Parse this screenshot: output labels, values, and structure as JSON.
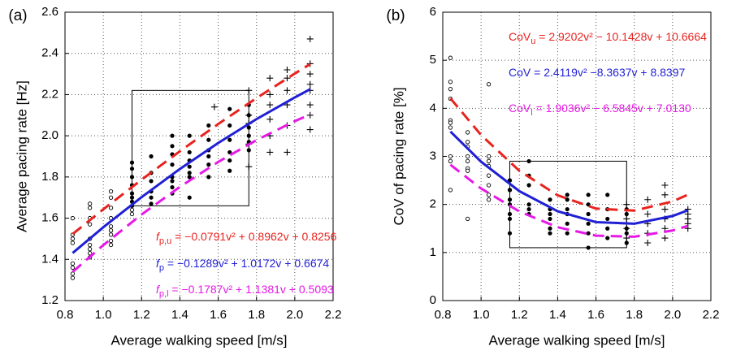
{
  "chart_data": [
    {
      "type": "scatter",
      "panel_label": "(a)",
      "xlabel": "Average walking speed [m/s]",
      "ylabel": "Average pacing rate [Hz]",
      "xlim": [
        0.8,
        2.2
      ],
      "ylim": [
        1.2,
        2.6
      ],
      "xticks": [
        0.8,
        {
          "value": 1,
          "label": "1.0"
        },
        1.2,
        1.4,
        1.6,
        1.8,
        {
          "value": 2,
          "label": "2.0"
        },
        2.2
      ],
      "yticks": [
        1.2,
        1.4,
        1.6,
        1.8,
        {
          "value": 2,
          "label": "2.0"
        },
        2.2,
        2.4,
        2.6
      ],
      "grid": true,
      "box": {
        "x": [
          1.15,
          1.76
        ],
        "y": [
          1.66,
          2.22
        ]
      },
      "series": [
        {
          "type": "scatter",
          "marker": "open",
          "color": "#000000",
          "x": [
            0.84,
            0.84,
            0.84,
            0.84,
            0.84,
            0.84,
            0.84,
            0.84,
            0.93,
            0.93,
            0.93,
            0.93,
            0.93,
            0.93,
            0.93,
            0.93,
            0.93,
            1.04,
            1.04,
            1.04,
            1.04,
            1.04,
            1.04,
            1.04,
            1.04,
            1.04,
            1.15,
            1.15
          ],
          "values": [
            1.6,
            1.52,
            1.5,
            1.48,
            1.38,
            1.36,
            1.33,
            1.31,
            1.67,
            1.65,
            1.6,
            1.57,
            1.5,
            1.47,
            1.45,
            1.43,
            1.41,
            1.73,
            1.7,
            1.65,
            1.6,
            1.56,
            1.54,
            1.52,
            1.49,
            1.47,
            1.64,
            1.62
          ]
        },
        {
          "type": "scatter",
          "marker": "dot",
          "color": "#000000",
          "x": [
            1.15,
            1.15,
            1.15,
            1.15,
            1.15,
            1.15,
            1.15,
            1.15,
            1.25,
            1.25,
            1.25,
            1.25,
            1.25,
            1.25,
            1.36,
            1.36,
            1.36,
            1.36,
            1.36,
            1.36,
            1.36,
            1.36,
            1.45,
            1.45,
            1.45,
            1.45,
            1.45,
            1.45,
            1.45,
            1.55,
            1.55,
            1.55,
            1.55,
            1.55,
            1.55,
            1.66,
            1.66,
            1.66,
            1.66,
            1.66,
            1.66,
            1.76,
            1.76,
            1.76,
            1.76,
            1.76,
            1.76
          ],
          "values": [
            1.87,
            1.84,
            1.8,
            1.76,
            1.72,
            1.7,
            1.68,
            1.66,
            1.9,
            1.82,
            1.78,
            1.73,
            1.7,
            1.67,
            2.0,
            1.95,
            1.91,
            1.86,
            1.8,
            1.78,
            1.75,
            1.72,
            2.0,
            1.92,
            1.88,
            1.85,
            1.82,
            1.8,
            1.7,
            2.05,
            1.98,
            1.93,
            1.9,
            1.86,
            1.8,
            2.13,
            2.05,
            1.98,
            1.92,
            1.88,
            1.83,
            2.15,
            2.1,
            2.04,
            2.0,
            1.97,
            1.93
          ]
        },
        {
          "type": "scatter",
          "marker": "plus",
          "color": "#000000",
          "x": [
            1.58,
            1.76,
            1.76,
            1.76,
            1.76,
            1.76,
            1.87,
            1.87,
            1.87,
            1.87,
            1.87,
            1.87,
            1.96,
            1.96,
            1.96,
            1.96,
            1.96,
            1.96,
            2.08,
            2.08,
            2.08,
            2.08,
            2.08,
            2.08,
            2.08,
            2.08
          ],
          "values": [
            2.14,
            2.22,
            2.1,
            2.06,
            1.96,
            1.85,
            2.28,
            2.2,
            2.15,
            2.08,
            2.0,
            1.92,
            2.32,
            2.28,
            2.22,
            2.15,
            2.05,
            1.92,
            2.47,
            2.35,
            2.3,
            2.25,
            2.22,
            2.15,
            2.1,
            2.03
          ]
        },
        {
          "type": "line",
          "style": "dashed",
          "color": "#e8231f",
          "x": [
            0.84,
            1.0,
            1.2,
            1.4,
            1.6,
            1.8,
            2.0,
            2.08
          ],
          "values": [
            1.523,
            1.643,
            1.787,
            1.925,
            2.057,
            2.183,
            2.302,
            2.348
          ]
        },
        {
          "type": "line",
          "style": "solid",
          "color": "#1f1fd6",
          "x": [
            0.84,
            1.0,
            1.2,
            1.4,
            1.6,
            1.8,
            2.0,
            2.08
          ],
          "values": [
            1.431,
            1.556,
            1.702,
            1.839,
            1.965,
            2.081,
            2.186,
            2.226
          ]
        },
        {
          "type": "line",
          "style": "dashed",
          "color": "#e619e6",
          "x": [
            0.84,
            1.0,
            1.2,
            1.4,
            1.6,
            1.8,
            2.0,
            2.08
          ],
          "values": [
            1.339,
            1.469,
            1.618,
            1.752,
            1.873,
            1.979,
            2.071,
            2.103
          ]
        }
      ],
      "annotations": [
        {
          "lhs": "f",
          "sub": "p,u",
          "rhs": " = −0.0791v² + 0.8962v + 0.8256",
          "color": "#e8231f"
        },
        {
          "lhs": "f",
          "sub": "p",
          "rhs": " = −0.1289v² + 1.0172v + 0.6674",
          "color": "#1f1fd6"
        },
        {
          "lhs": "f",
          "sub": "p,l",
          "rhs": " = −0.1787v² + 1.1381v + 0.5093",
          "color": "#e619e6"
        }
      ]
    },
    {
      "type": "scatter",
      "panel_label": "(b)",
      "xlabel": "Average walking speed [m/s]",
      "ylabel": "CoV of pacing rate [%]",
      "xlim": [
        0.8,
        2.2
      ],
      "ylim": [
        0,
        6
      ],
      "xticks": [
        0.8,
        {
          "value": 1,
          "label": "1.0"
        },
        1.2,
        1.4,
        1.6,
        1.8,
        {
          "value": 2,
          "label": "2.0"
        },
        2.2
      ],
      "yticks": [
        0,
        1,
        2,
        3,
        4,
        5,
        6
      ],
      "grid": true,
      "box": {
        "x": [
          1.15,
          1.76
        ],
        "y": [
          1.1,
          2.9
        ]
      },
      "series": [
        {
          "type": "scatter",
          "marker": "open",
          "color": "#000000",
          "x": [
            0.84,
            0.84,
            0.84,
            0.84,
            0.84,
            0.84,
            0.84,
            0.84,
            0.84,
            0.84,
            0.93,
            0.93,
            0.93,
            0.93,
            0.93,
            0.93,
            0.93,
            0.93,
            1.04,
            1.04,
            1.04,
            1.04,
            1.04,
            1.04,
            1.04,
            1.04,
            1.15,
            1.15
          ],
          "values": [
            5.05,
            4.55,
            4.4,
            4.2,
            3.75,
            3.7,
            3.6,
            3.0,
            2.9,
            2.3,
            3.5,
            3.3,
            3.2,
            3.0,
            2.9,
            2.75,
            2.7,
            1.7,
            4.5,
            3.0,
            2.9,
            2.8,
            2.6,
            2.4,
            2.2,
            2.1,
            2.5,
            2.3
          ]
        },
        {
          "type": "scatter",
          "marker": "dot",
          "color": "#000000",
          "x": [
            1.15,
            1.15,
            1.15,
            1.15,
            1.15,
            1.15,
            1.15,
            1.25,
            1.25,
            1.25,
            1.25,
            1.25,
            1.25,
            1.36,
            1.36,
            1.36,
            1.36,
            1.36,
            1.36,
            1.45,
            1.45,
            1.45,
            1.45,
            1.45,
            1.45,
            1.56,
            1.56,
            1.56,
            1.56,
            1.56,
            1.56,
            1.66,
            1.66,
            1.66,
            1.66,
            1.66,
            1.76,
            1.76,
            1.76,
            1.76,
            1.76
          ],
          "values": [
            2.5,
            2.3,
            2.1,
            2.0,
            1.8,
            1.7,
            1.4,
            2.9,
            2.6,
            2.4,
            2.0,
            1.9,
            1.8,
            2.1,
            1.9,
            1.8,
            1.7,
            1.5,
            1.4,
            2.2,
            2.1,
            1.9,
            1.8,
            1.6,
            1.4,
            2.2,
            2.0,
            1.8,
            1.6,
            1.4,
            1.1,
            2.2,
            1.9,
            1.7,
            1.5,
            1.3,
            1.9,
            1.8,
            1.5,
            1.4,
            1.2
          ]
        },
        {
          "type": "scatter",
          "marker": "plus",
          "color": "#000000",
          "x": [
            1.76,
            1.76,
            1.76,
            1.76,
            1.87,
            1.87,
            1.87,
            1.87,
            1.87,
            1.96,
            1.96,
            1.96,
            1.96,
            1.96,
            1.96,
            2.08,
            2.08,
            2.08,
            2.08,
            2.08
          ],
          "values": [
            2.0,
            1.7,
            1.5,
            1.3,
            2.1,
            1.8,
            1.6,
            1.4,
            1.2,
            2.4,
            2.2,
            1.9,
            1.7,
            1.5,
            1.3,
            1.9,
            1.8,
            1.7,
            1.6,
            1.5
          ]
        },
        {
          "type": "line",
          "style": "dashed",
          "color": "#e8231f",
          "x": [
            0.84,
            1.0,
            1.2,
            1.4,
            1.6,
            1.8,
            2.0,
            2.08
          ],
          "values": [
            4.207,
            3.444,
            2.7,
            2.19,
            1.914,
            1.871,
            2.062,
            2.203
          ]
        },
        {
          "type": "line",
          "style": "solid",
          "color": "#1f1fd6",
          "x": [
            0.84,
            1.0,
            1.2,
            1.4,
            1.6,
            1.8,
            2.0,
            2.08
          ],
          "values": [
            3.516,
            2.888,
            2.276,
            1.858,
            1.632,
            1.6,
            1.76,
            1.878
          ]
        },
        {
          "type": "line",
          "style": "dashed",
          "color": "#e619e6",
          "x": [
            0.84,
            1.0,
            1.2,
            1.4,
            1.6,
            1.8,
            2.0,
            2.08
          ],
          "values": [
            2.825,
            2.332,
            1.853,
            1.526,
            1.351,
            1.329,
            1.458,
            1.553
          ]
        }
      ],
      "annotations": [
        {
          "lhs": "CoV",
          "sub": "u",
          "rhs": " = 2.9202v² − 10.1428v + 10.6664",
          "color": "#e8231f"
        },
        {
          "lhs": "CoV",
          "rhs": " = 2.4119v² −8.3637v + 8.8397",
          "color": "#1f1fd6"
        },
        {
          "lhs": "CoV",
          "sub": "l",
          "rhs": " = 1.9036v² − 6.5845v + 7.0130",
          "color": "#e619e6"
        }
      ]
    }
  ]
}
